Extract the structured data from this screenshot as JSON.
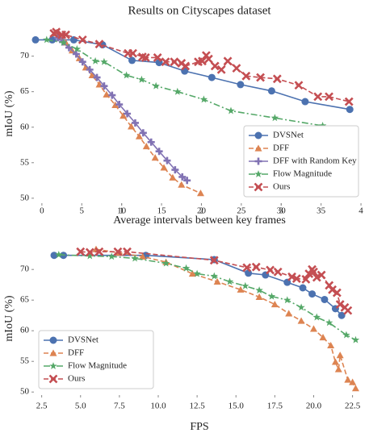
{
  "chart_data": [
    {
      "type": "line",
      "title": "Results on Cityscapes dataset",
      "xlabel": "Average intervals between key frames",
      "ylabel": "mIoU (%)",
      "xlim": [
        -1,
        40.5
      ],
      "xticks": [
        5,
        10,
        15,
        20,
        25,
        30,
        35
      ],
      "x2lim": [
        -0.1,
        4.05
      ],
      "x2ticks": [
        0,
        1,
        2,
        3,
        4
      ],
      "ylim": [
        49.3,
        74.5
      ],
      "yticks": [
        50,
        55,
        60,
        65,
        70
      ],
      "legend": "lower right",
      "series": [
        {
          "name": "DVSNet",
          "color": "#4c72b0",
          "marker": "circle",
          "linestyle": "solid",
          "x": [
            -0.8,
            1.3,
            4.0,
            7.6,
            11.3,
            14.7,
            17.9,
            21.3,
            24.9,
            28.8,
            33.0,
            38.6
          ],
          "values": [
            72.3,
            72.3,
            72.3,
            71.6,
            69.4,
            69.1,
            67.9,
            67.0,
            66.0,
            65.1,
            63.6,
            62.5
          ]
        },
        {
          "name": "DFF",
          "color": "#dd8452",
          "marker": "triangle",
          "linestyle": "dashed",
          "x": [
            1.6,
            2.3,
            3.0,
            3.8,
            4.7,
            5.5,
            6.3,
            7.2,
            8.1,
            9.2,
            10.2,
            11.2,
            12.2,
            13.1,
            14.2,
            15.3,
            16.4,
            17.5,
            19.9
          ],
          "values": [
            73.2,
            72.7,
            71.9,
            70.8,
            69.7,
            68.4,
            67.3,
            66.0,
            64.6,
            63.1,
            61.6,
            60.1,
            58.7,
            57.3,
            55.7,
            54.3,
            52.9,
            51.9,
            50.7
          ]
        },
        {
          "name": "DFF with Random Key",
          "color": "#8172b3",
          "marker": "plus",
          "linestyle": "solid",
          "x": [
            2.0,
            2.6,
            3.4,
            4.3,
            5.1,
            6.0,
            6.9,
            7.8,
            8.8,
            9.7,
            10.7,
            11.7,
            12.7,
            13.7,
            14.7,
            15.7,
            16.7,
            17.6,
            18.2
          ],
          "values": [
            72.6,
            72.0,
            71.2,
            70.3,
            69.2,
            68.1,
            67.0,
            65.8,
            64.5,
            63.2,
            61.9,
            60.6,
            59.2,
            57.9,
            56.6,
            55.3,
            54.0,
            53.0,
            52.5
          ]
        },
        {
          "name": "Flow Magnitude",
          "color": "#55a868",
          "marker": "star",
          "linestyle": "dashdot",
          "x": [
            0.6,
            2.7,
            4.4,
            6.7,
            7.8,
            10.6,
            12.5,
            14.3,
            17.0,
            20.3,
            23.7,
            29.2,
            35.2
          ],
          "values": [
            72.3,
            71.9,
            71.0,
            69.3,
            69.2,
            67.3,
            66.7,
            65.8,
            65.0,
            63.9,
            62.3,
            61.3,
            60.2
          ]
        },
        {
          "name": "Ours",
          "color": "#c44e52",
          "marker": "x",
          "linestyle": "dashed",
          "x": [
            1.5,
            1.8,
            2.5,
            3.0,
            5.1,
            7.2,
            10.8,
            11.4,
            12.6,
            13.0,
            14.5,
            15.5,
            16.6,
            17.5,
            18.0,
            19.6,
            20.1,
            20.6,
            20.9,
            21.7,
            22.5,
            23.3,
            24.4,
            25.6,
            27.4,
            29.5,
            32.2,
            34.6,
            36.0,
            38.5
          ],
          "values": [
            73.2,
            73.4,
            73.0,
            73.0,
            72.3,
            71.7,
            70.4,
            70.4,
            69.9,
            69.8,
            69.8,
            69.2,
            69.2,
            69.0,
            68.6,
            69.2,
            69.3,
            70.1,
            69.6,
            68.6,
            68.1,
            69.3,
            68.3,
            67.2,
            67.0,
            66.8,
            65.9,
            64.3,
            64.3,
            63.6
          ]
        }
      ]
    },
    {
      "type": "line",
      "xlabel": "FPS",
      "ylabel": "mIoU (%)",
      "xlim": [
        2,
        23.3
      ],
      "xticks": [
        2.5,
        {
          "value": 5,
          "label": "5.0"
        },
        7.5,
        {
          "value": 10,
          "label": "10.0"
        },
        12.5,
        {
          "value": 15,
          "label": "15.0"
        },
        17.5,
        {
          "value": 20,
          "label": "20.0"
        },
        22.5
      ],
      "ylim": [
        49.5,
        74.5
      ],
      "yticks": [
        50,
        55,
        60,
        65,
        70
      ],
      "legend": "lower left",
      "series": [
        {
          "name": "DVSNet",
          "color": "#4c72b0",
          "marker": "circle",
          "linestyle": "solid",
          "x": [
            3.3,
            3.9,
            9.2,
            13.6,
            15.8,
            16.9,
            18.3,
            19.3,
            19.9,
            20.7,
            21.4,
            21.8
          ],
          "values": [
            72.3,
            72.3,
            72.3,
            71.6,
            69.4,
            69.1,
            67.9,
            67.0,
            66.0,
            65.1,
            63.6,
            62.5
          ]
        },
        {
          "name": "DFF",
          "color": "#dd8452",
          "marker": "triangle",
          "linestyle": "dashed",
          "x": [
            6.0,
            7.5,
            9.0,
            10.5,
            12.2,
            13.8,
            15.3,
            16.5,
            17.5,
            18.4,
            19.2,
            20.0,
            20.6,
            21.1,
            21.4,
            21.6,
            21.7,
            22.2,
            22.5,
            22.7
          ],
          "values": [
            73.3,
            72.7,
            72.1,
            71.2,
            69.3,
            68.0,
            66.7,
            65.5,
            64.3,
            62.8,
            61.6,
            60.3,
            58.9,
            57.6,
            54.9,
            53.7,
            56.0,
            52.0,
            51.6,
            50.6
          ]
        },
        {
          "name": "Flow Magnitude",
          "color": "#55a868",
          "marker": "star",
          "linestyle": "dashdot",
          "x": [
            3.6,
            5.6,
            7.0,
            8.5,
            10.5,
            11.8,
            12.5,
            13.6,
            14.6,
            15.6,
            16.5,
            17.3,
            18.3,
            19.2,
            20.2,
            21.0,
            22.1,
            22.7
          ],
          "values": [
            72.4,
            72.2,
            72.1,
            71.8,
            71.0,
            70.2,
            69.3,
            68.9,
            68.0,
            67.3,
            66.6,
            65.6,
            65.0,
            63.8,
            62.2,
            61.3,
            59.3,
            58.5
          ]
        },
        {
          "name": "Ours",
          "color": "#c44e52",
          "marker": "x",
          "linestyle": "dashed",
          "x": [
            5.0,
            5.6,
            6.2,
            7.4,
            8.0,
            13.6,
            15.7,
            16.3,
            17.2,
            17.7,
            18.6,
            18.9,
            19.5,
            19.7,
            19.9,
            20.0,
            20.2,
            20.5,
            21.0,
            21.2,
            21.5,
            21.7,
            22.0,
            22.2
          ],
          "values": [
            72.9,
            72.8,
            72.9,
            72.9,
            72.9,
            71.5,
            70.3,
            70.4,
            69.9,
            69.6,
            68.8,
            68.5,
            68.4,
            69.3,
            70.0,
            69.6,
            68.7,
            69.1,
            67.4,
            66.7,
            66.2,
            64.3,
            63.8,
            63.3
          ]
        }
      ]
    }
  ]
}
